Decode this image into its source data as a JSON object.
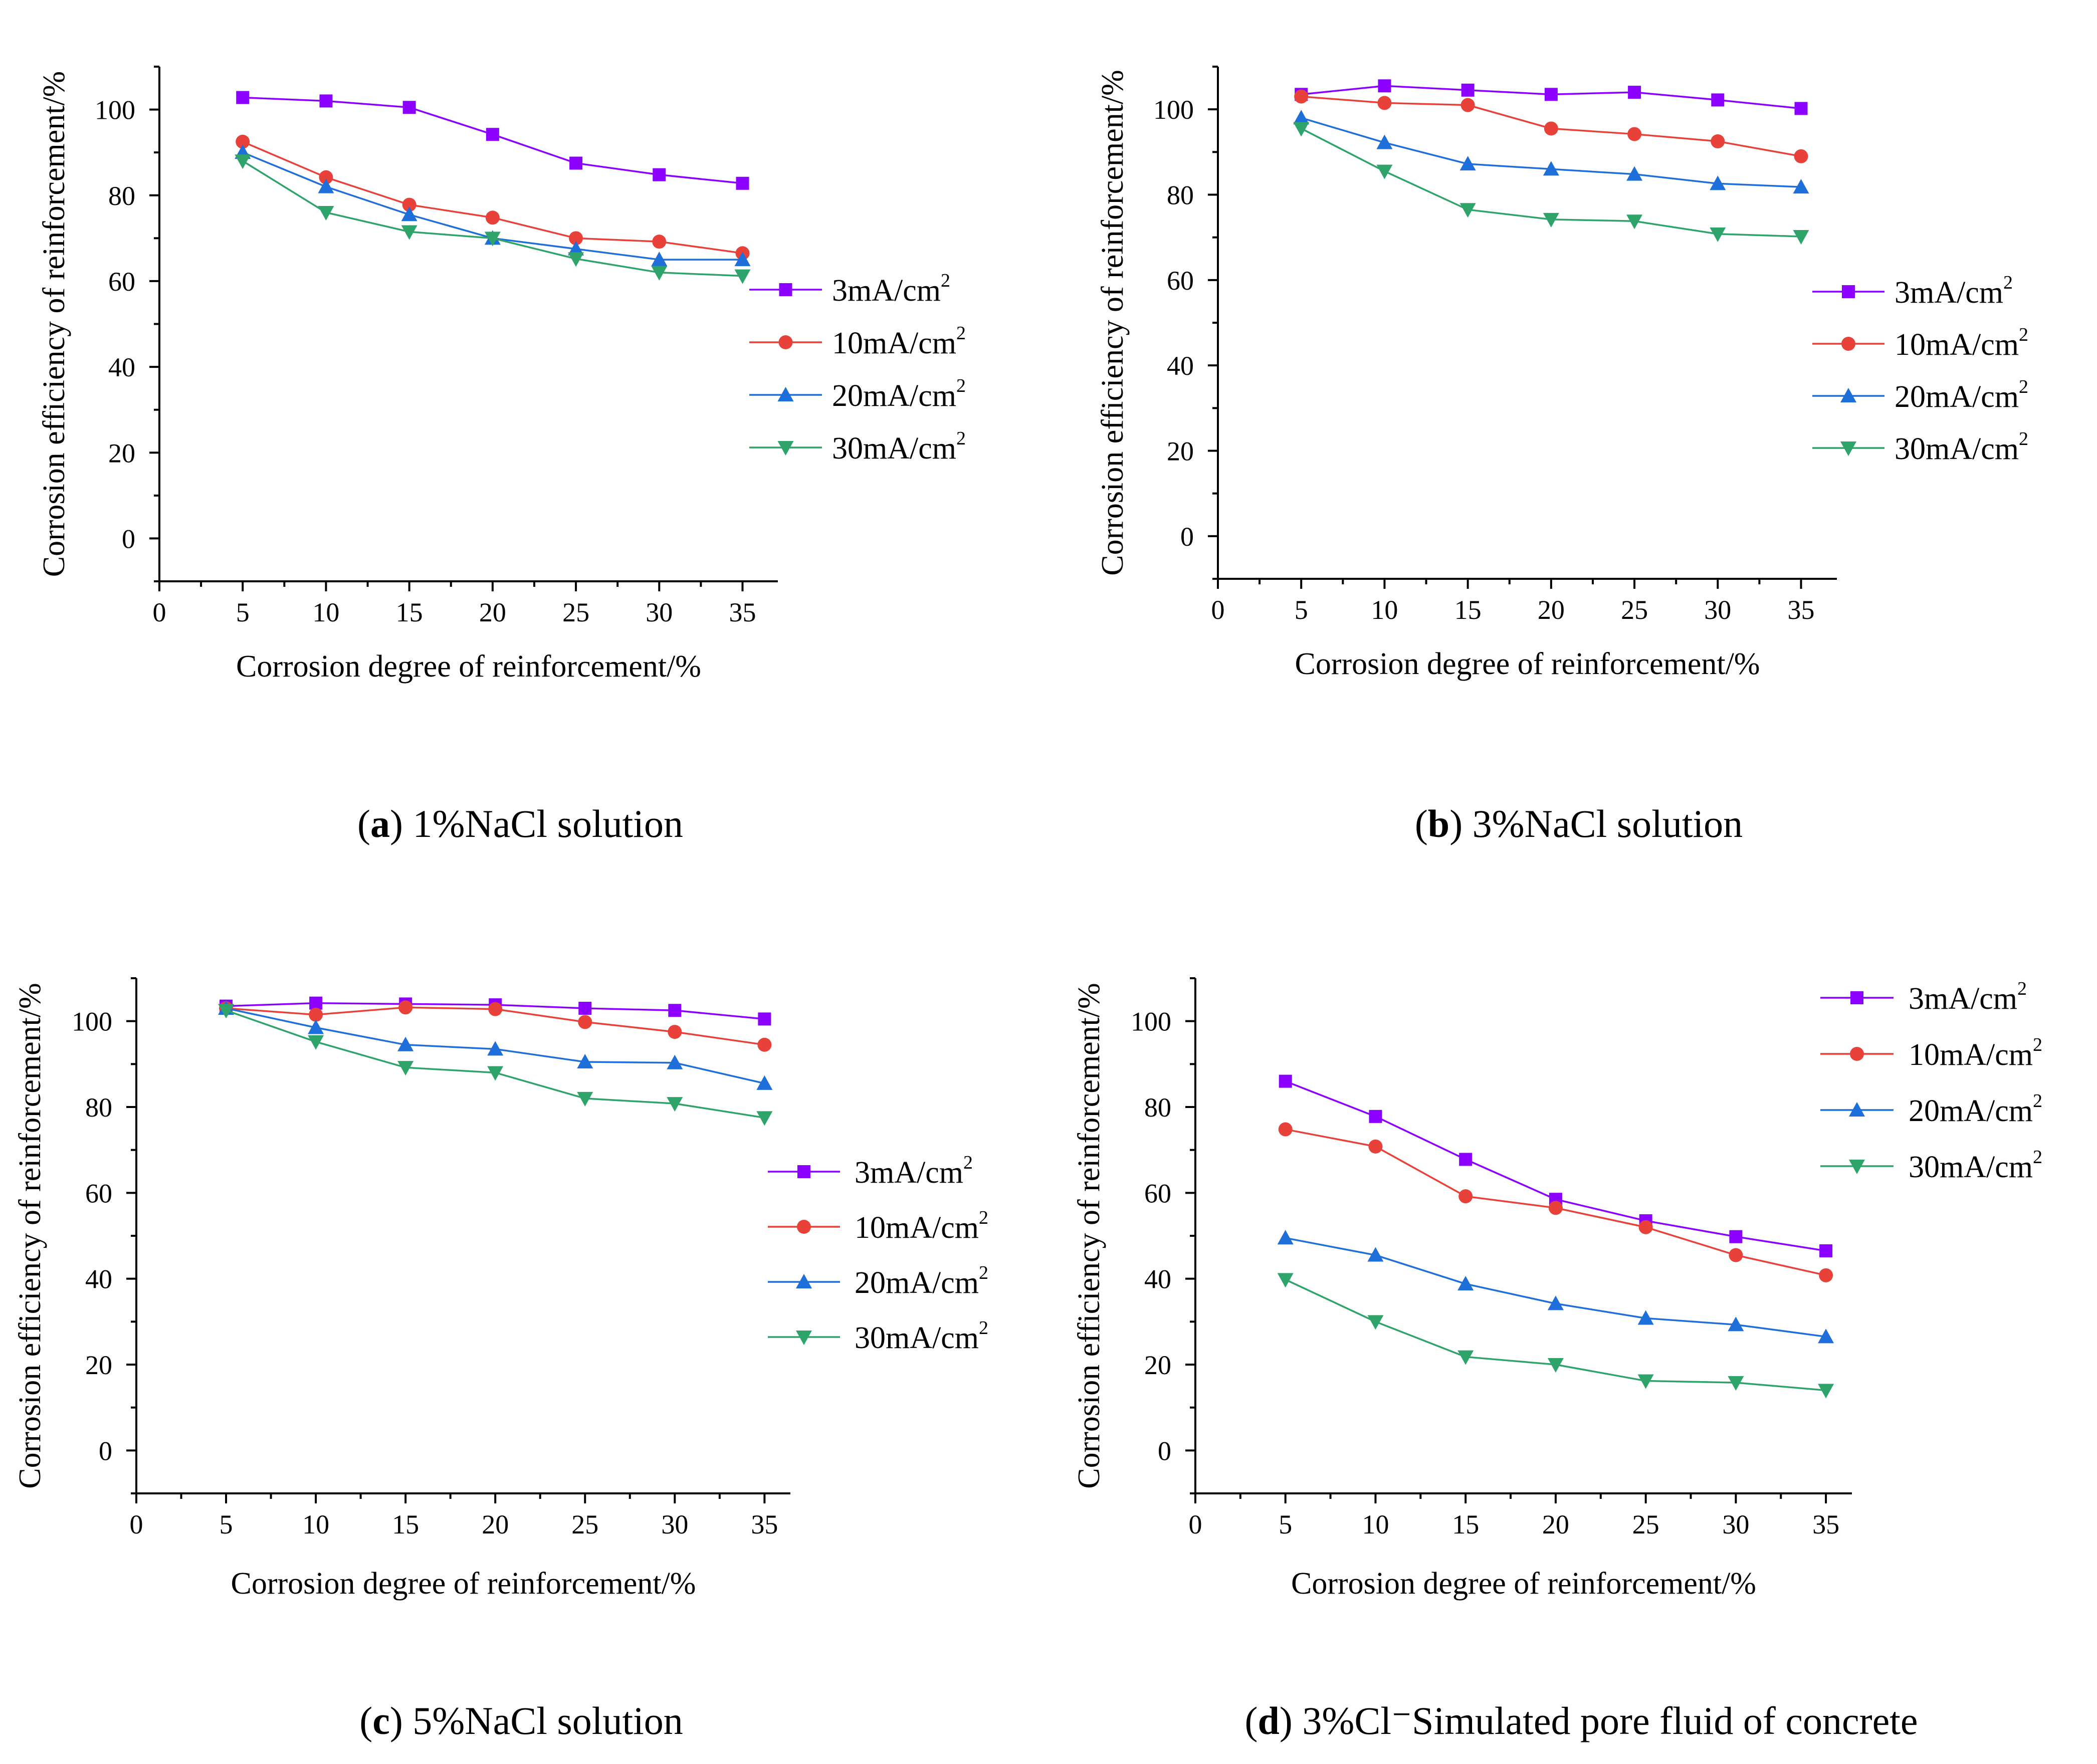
{
  "chart_data": [
    {
      "id": "a",
      "type": "line",
      "caption": {
        "letter": "a",
        "text": "1%NaCl solution"
      },
      "xlabel": "Corrosion degree of reinforcement/%",
      "ylabel": "Corrosion efficiency of reinforcement/%",
      "xlim": [
        0,
        37
      ],
      "ylim": [
        -10,
        110
      ],
      "xticks": [
        0,
        5,
        10,
        15,
        20,
        25,
        30,
        35
      ],
      "yticks": [
        0,
        20,
        40,
        60,
        80,
        100
      ],
      "x": [
        5,
        10,
        15,
        20,
        25,
        30,
        35
      ],
      "legend_position": "right",
      "series": [
        {
          "name": "3mA/cm",
          "sup": "2",
          "color": "#8B00FF",
          "marker": "square",
          "values": [
            102.8,
            102.0,
            100.5,
            94.2,
            87.5,
            84.8,
            82.8
          ]
        },
        {
          "name": "10mA/cm",
          "sup": "2",
          "color": "#E8413A",
          "marker": "circle",
          "values": [
            92.5,
            84.2,
            77.8,
            74.8,
            70.0,
            69.2,
            66.5
          ]
        },
        {
          "name": "20mA/cm",
          "sup": "2",
          "color": "#1E6FD9",
          "marker": "triangle-up",
          "values": [
            90.0,
            82.0,
            75.5,
            70.0,
            67.5,
            65.0,
            65.0
          ]
        },
        {
          "name": "30mA/cm",
          "sup": "2",
          "color": "#2EA36A",
          "marker": "triangle-down",
          "values": [
            88.0,
            76.0,
            71.5,
            70.0,
            65.2,
            62.0,
            61.2
          ]
        }
      ]
    },
    {
      "id": "b",
      "type": "line",
      "caption": {
        "letter": "b",
        "text": "3%NaCl solution"
      },
      "xlabel": "Corrosion degree of reinforcement/%",
      "ylabel": "Corrosion efficiency of reinforcement/%",
      "xlim": [
        0,
        37
      ],
      "ylim": [
        -10,
        110
      ],
      "xticks": [
        0,
        5,
        10,
        15,
        20,
        25,
        30,
        35
      ],
      "yticks": [
        0,
        20,
        40,
        60,
        80,
        100
      ],
      "x": [
        5,
        10,
        15,
        20,
        25,
        30,
        35
      ],
      "legend_position": "right",
      "series": [
        {
          "name": "3mA/cm",
          "sup": "2",
          "color": "#8B00FF",
          "marker": "square",
          "values": [
            103.5,
            105.5,
            104.5,
            103.5,
            104.0,
            102.2,
            100.2
          ]
        },
        {
          "name": "10mA/cm",
          "sup": "2",
          "color": "#E8413A",
          "marker": "circle",
          "values": [
            103.0,
            101.5,
            101.0,
            95.5,
            94.2,
            92.5,
            89.0
          ]
        },
        {
          "name": "20mA/cm",
          "sup": "2",
          "color": "#1E6FD9",
          "marker": "triangle-up",
          "values": [
            98.0,
            92.2,
            87.2,
            86.0,
            84.8,
            82.6,
            81.8
          ]
        },
        {
          "name": "30mA/cm",
          "sup": "2",
          "color": "#2EA36A",
          "marker": "triangle-down",
          "values": [
            95.5,
            85.5,
            76.5,
            74.2,
            73.8,
            70.8,
            70.2
          ]
        }
      ]
    },
    {
      "id": "c",
      "type": "line",
      "caption": {
        "letter": "c",
        "text": "5%NaCl solution"
      },
      "xlabel": "Corrosion degree of reinforcement/%",
      "ylabel": "Corrosion efficiency of reinforcement/%",
      "xlim": [
        0,
        37
      ],
      "ylim": [
        -10,
        110
      ],
      "xticks": [
        0,
        5,
        10,
        15,
        20,
        25,
        30,
        35
      ],
      "yticks": [
        0,
        20,
        40,
        60,
        80,
        100
      ],
      "x": [
        5,
        10,
        15,
        20,
        25,
        30,
        35
      ],
      "legend_position": "right",
      "series": [
        {
          "name": "3mA/cm",
          "sup": "2",
          "color": "#8B00FF",
          "marker": "square",
          "values": [
            103.5,
            104.2,
            104.0,
            103.8,
            103.0,
            102.5,
            100.5
          ]
        },
        {
          "name": "10mA/cm",
          "sup": "2",
          "color": "#E8413A",
          "marker": "circle",
          "values": [
            103.0,
            101.5,
            103.2,
            102.8,
            99.8,
            97.5,
            94.5
          ]
        },
        {
          "name": "20mA/cm",
          "sup": "2",
          "color": "#1E6FD9",
          "marker": "triangle-up",
          "values": [
            103.0,
            98.5,
            94.5,
            93.5,
            90.5,
            90.3,
            85.5
          ]
        },
        {
          "name": "30mA/cm",
          "sup": "2",
          "color": "#2EA36A",
          "marker": "triangle-down",
          "values": [
            102.5,
            95.2,
            89.2,
            88.0,
            82.0,
            80.8,
            77.5
          ]
        }
      ]
    },
    {
      "id": "d",
      "type": "line",
      "caption": {
        "letter": "d",
        "text": "3%Cl⁻Simulated pore fluid of concrete"
      },
      "xlabel": "Corrosion degree of reinforcement/%",
      "ylabel": "Corrosion efficiency of reinforcement/%",
      "xlim": [
        0,
        37
      ],
      "ylim": [
        -10,
        110
      ],
      "xticks": [
        0,
        5,
        10,
        15,
        20,
        25,
        30,
        35
      ],
      "yticks": [
        0,
        20,
        40,
        60,
        80,
        100
      ],
      "x": [
        5,
        10,
        15,
        20,
        25,
        30,
        35
      ],
      "legend_position": "top-right",
      "series": [
        {
          "name": "3mA/cm",
          "sup": "2",
          "color": "#8B00FF",
          "marker": "square",
          "values": [
            86.0,
            77.8,
            67.8,
            58.5,
            53.5,
            49.8,
            46.5
          ]
        },
        {
          "name": "10mA/cm",
          "sup": "2",
          "color": "#E8413A",
          "marker": "circle",
          "values": [
            74.8,
            70.8,
            59.2,
            56.5,
            52.0,
            45.5,
            40.8
          ]
        },
        {
          "name": "20mA/cm",
          "sup": "2",
          "color": "#1E6FD9",
          "marker": "triangle-up",
          "values": [
            49.5,
            45.5,
            38.8,
            34.2,
            30.8,
            29.3,
            26.5
          ]
        },
        {
          "name": "30mA/cm",
          "sup": "2",
          "color": "#2EA36A",
          "marker": "triangle-down",
          "values": [
            39.8,
            30.0,
            21.8,
            20.0,
            16.2,
            15.8,
            14.0
          ]
        }
      ]
    }
  ]
}
